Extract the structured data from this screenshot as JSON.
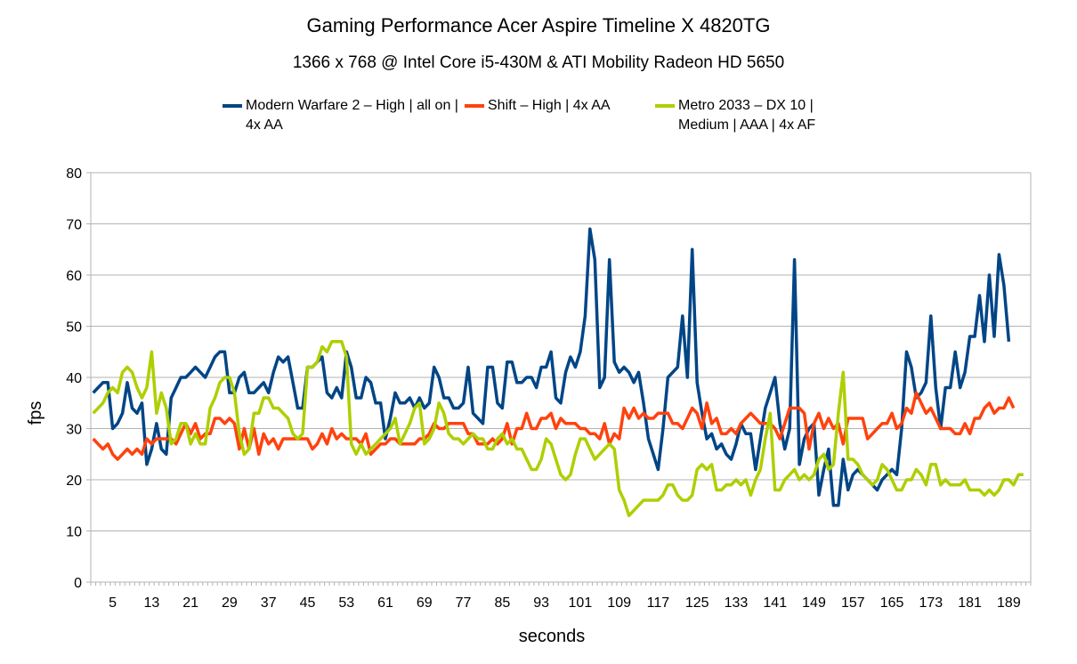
{
  "chart_data": {
    "type": "line",
    "title": "Gaming Performance Acer Aspire Timeline X 4820TG",
    "subtitle": "1366 x 768 @ Intel Core i5-430M & ATI Mobility Radeon HD 5650",
    "xlabel": "seconds",
    "ylabel": "fps",
    "ylim": [
      0,
      80
    ],
    "yticks": [
      0,
      10,
      20,
      30,
      40,
      50,
      60,
      70,
      80
    ],
    "xlim": [
      1,
      193
    ],
    "xtick_labels": [
      "5",
      "13",
      "21",
      "29",
      "37",
      "45",
      "53",
      "61",
      "69",
      "77",
      "85",
      "93",
      "101",
      "109",
      "117",
      "125",
      "133",
      "141",
      "149",
      "157",
      "165",
      "173",
      "181",
      "189"
    ],
    "grid": true,
    "legend_position": "top",
    "series": [
      {
        "name": "Modern Warfare 2 – High | all on | 4x AA",
        "color": "#004586",
        "values": [
          37,
          38,
          39,
          39,
          30,
          31,
          33,
          39,
          34,
          33,
          35,
          23,
          26,
          31,
          26,
          25,
          36,
          38,
          40,
          40,
          41,
          42,
          41,
          40,
          42,
          44,
          45,
          45,
          37,
          37,
          40,
          41,
          37,
          37,
          38,
          39,
          37,
          41,
          44,
          43,
          44,
          39,
          34,
          34,
          42,
          42,
          43,
          44,
          37,
          36,
          38,
          36,
          45,
          42,
          36,
          36,
          40,
          39,
          35,
          35,
          28,
          32,
          37,
          35,
          35,
          36,
          34,
          36,
          34,
          35,
          42,
          40,
          36,
          36,
          34,
          34,
          35,
          42,
          33,
          32,
          31,
          42,
          42,
          35,
          34,
          43,
          43,
          39,
          39,
          40,
          40,
          38,
          42,
          42,
          45,
          36,
          35,
          41,
          44,
          42,
          45,
          52,
          69,
          63,
          38,
          40,
          63,
          43,
          41,
          42,
          41,
          39,
          41,
          35,
          28,
          25,
          22,
          30,
          40,
          41,
          42,
          52,
          40,
          65,
          39,
          33,
          28,
          29,
          26,
          27,
          25,
          24,
          27,
          31,
          29,
          29,
          22,
          28,
          34,
          37,
          40,
          31,
          26,
          30,
          63,
          23,
          28,
          30,
          31,
          17,
          22,
          26,
          15,
          15,
          24,
          18,
          21,
          22,
          21,
          20,
          19,
          18,
          20,
          21,
          22,
          21,
          30,
          45,
          42,
          36,
          37,
          39,
          52,
          38,
          30,
          38,
          38,
          45,
          38,
          41,
          48,
          48,
          56,
          47,
          60,
          48,
          64,
          58,
          47
        ],
        "values_note": "approx"
      },
      {
        "name": "Shift – High | 4x AA",
        "color": "#ff420e",
        "values": [
          28,
          27,
          26,
          27,
          25,
          24,
          25,
          26,
          25,
          26,
          25,
          28,
          27,
          28,
          28,
          28,
          28,
          27,
          29,
          31,
          29,
          31,
          28,
          29,
          29,
          32,
          32,
          31,
          32,
          31,
          26,
          30,
          26,
          30,
          25,
          29,
          27,
          28,
          26,
          28,
          28,
          28,
          28,
          28,
          28,
          26,
          27,
          29,
          27,
          30,
          28,
          29,
          28,
          28,
          28,
          27,
          29,
          25,
          26,
          27,
          27,
          28,
          28,
          27,
          27,
          27,
          27,
          28,
          28,
          29,
          31,
          30,
          30,
          31,
          31,
          31,
          31,
          29,
          29,
          27,
          27,
          27,
          28,
          27,
          28,
          31,
          27,
          30,
          30,
          33,
          30,
          30,
          32,
          32,
          33,
          30,
          32,
          31,
          31,
          31,
          30,
          30,
          29,
          29,
          28,
          31,
          27,
          29,
          28,
          34,
          32,
          34,
          32,
          33,
          32,
          32,
          33,
          33,
          33,
          31,
          31,
          30,
          32,
          34,
          33,
          30,
          35,
          31,
          32,
          29,
          29,
          30,
          29,
          31,
          32,
          33,
          32,
          31,
          31,
          31,
          30,
          28,
          31,
          34,
          34,
          34,
          33,
          26,
          31,
          33,
          30,
          32,
          30,
          31,
          27,
          32,
          32,
          32,
          32,
          28,
          29,
          30,
          31,
          31,
          33,
          30,
          31,
          34,
          33,
          37,
          35,
          33,
          34,
          32,
          30,
          30,
          30,
          29,
          29,
          31,
          29,
          32,
          32,
          34,
          35,
          33,
          34,
          34,
          36,
          34
        ],
        "values_note": "approx"
      },
      {
        "name": "Metro 2033 – DX 10 | Medium | AAA | 4x AF",
        "color": "#aecf00",
        "values": [
          33,
          34,
          35,
          37,
          38,
          37,
          41,
          42,
          41,
          38,
          36,
          38,
          45,
          33,
          37,
          34,
          27,
          28,
          31,
          31,
          27,
          29,
          27,
          27,
          34,
          36,
          39,
          40,
          40,
          37,
          29,
          25,
          26,
          33,
          33,
          36,
          36,
          34,
          34,
          33,
          32,
          29,
          28,
          29,
          42,
          42,
          43,
          46,
          45,
          47,
          47,
          47,
          44,
          27,
          25,
          27,
          25,
          26,
          27,
          28,
          29,
          30,
          32,
          27,
          29,
          31,
          34,
          35,
          27,
          28,
          30,
          35,
          33,
          29,
          28,
          28,
          27,
          28,
          29,
          28,
          28,
          26,
          26,
          28,
          29,
          27,
          28,
          26,
          26,
          24,
          22,
          22,
          24,
          28,
          27,
          24,
          21,
          20,
          21,
          25,
          28,
          28,
          26,
          24,
          25,
          26,
          27,
          26,
          18,
          16,
          13,
          14,
          15,
          16,
          16,
          16,
          16,
          17,
          19,
          19,
          17,
          16,
          16,
          17,
          22,
          23,
          22,
          23,
          18,
          18,
          19,
          19,
          20,
          19,
          20,
          17,
          20,
          22,
          28,
          33,
          18,
          18,
          20,
          21,
          22,
          20,
          21,
          20,
          21,
          24,
          25,
          22,
          23,
          33,
          41,
          24,
          24,
          23,
          21,
          20,
          19,
          20,
          23,
          22,
          20,
          18,
          18,
          20,
          20,
          22,
          21,
          19,
          23,
          23,
          19,
          20,
          19,
          19,
          19,
          20,
          18,
          18,
          18,
          17,
          18,
          17,
          18,
          20,
          20,
          19,
          21,
          21
        ],
        "values_note": "approx"
      }
    ]
  }
}
